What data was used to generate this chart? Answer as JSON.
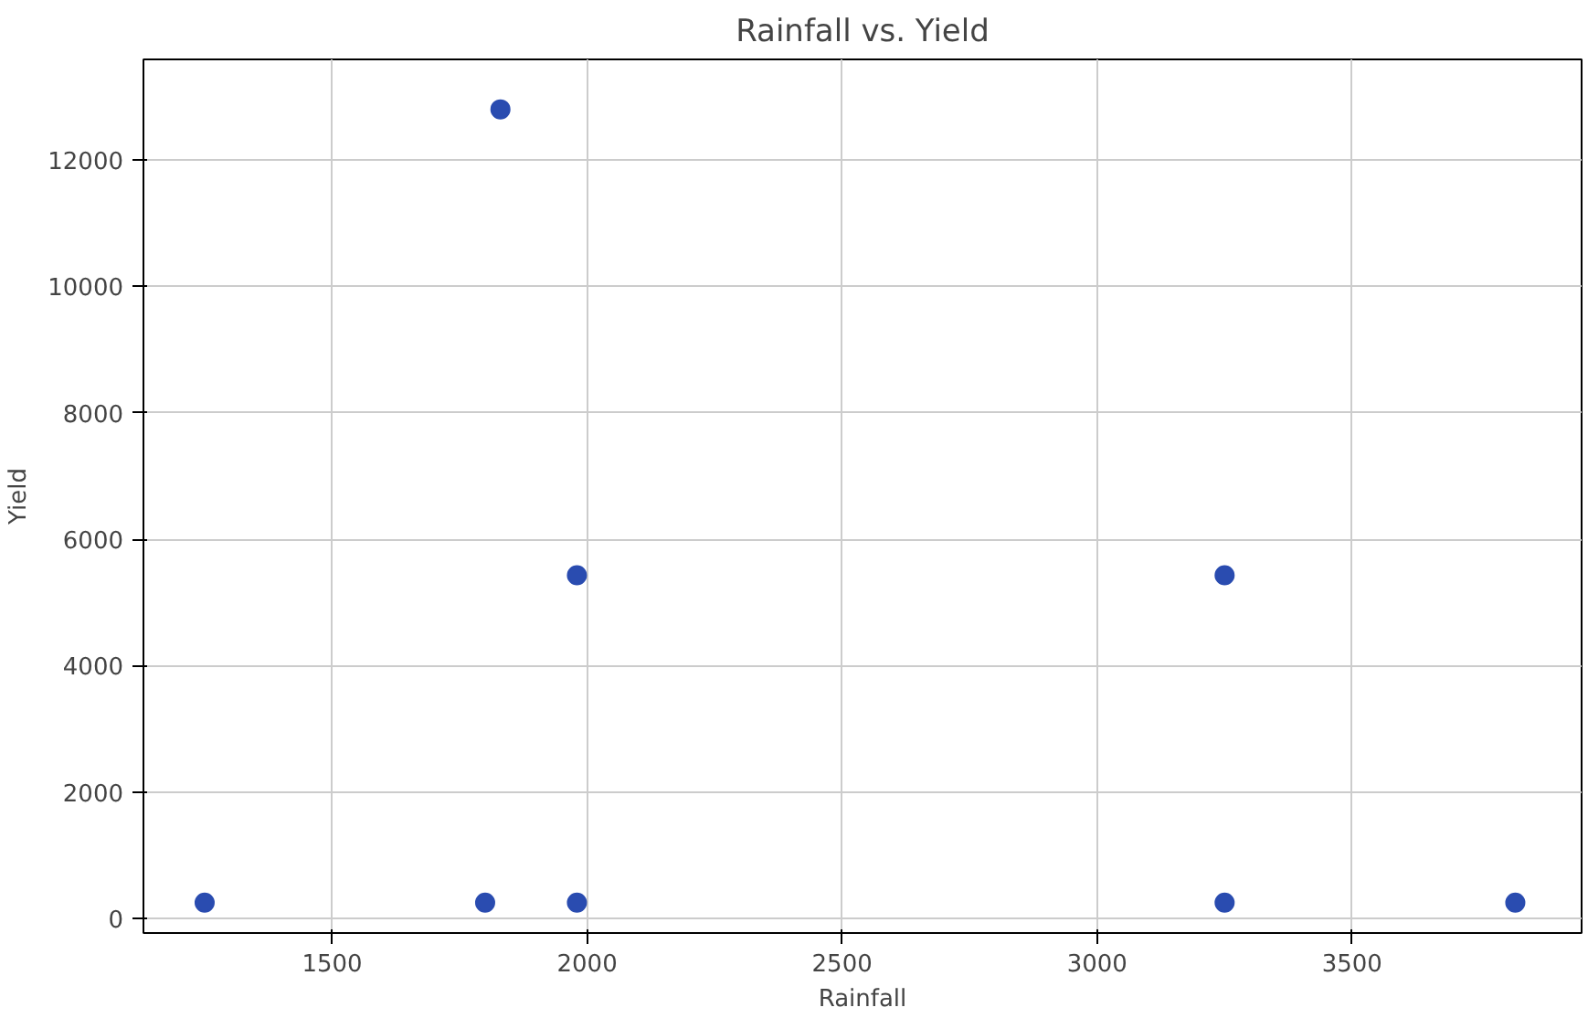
{
  "chart_data": {
    "type": "scatter",
    "title": "Rainfall vs. Yield",
    "xlabel": "Rainfall",
    "ylabel": "Yield",
    "x": [
      1250,
      1800,
      1830,
      1980,
      1980,
      3250,
      3250,
      3820
    ],
    "series": [
      {
        "color": "#2a4cb0",
        "values": [
          250,
          250,
          12800,
          5430,
          250,
          5430,
          250,
          250
        ]
      }
    ],
    "xlim": [
      1130,
      3950
    ],
    "ylim": [
      -230,
      13590
    ],
    "xticks": [
      1500,
      2000,
      2500,
      3000,
      3500
    ],
    "yticks": [
      0,
      2000,
      4000,
      6000,
      8000,
      10000,
      12000
    ],
    "grid": true,
    "marker": "circle"
  }
}
